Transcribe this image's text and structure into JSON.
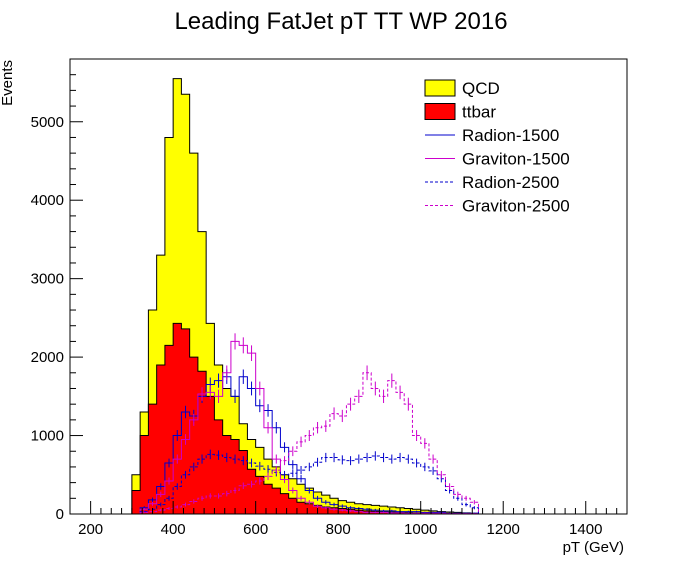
{
  "chart_data": {
    "type": "histogram",
    "title": "Leading FatJet pT TT WP 2016",
    "xlabel": "pT (GeV)",
    "ylabel": "Events",
    "xlim": [
      150,
      1500
    ],
    "ylim": [
      0,
      5800
    ],
    "bin_width": 20,
    "bin_start": 300,
    "grid": false,
    "legend_position": "top-right",
    "x_ticks": [
      200,
      400,
      600,
      800,
      1000,
      1200,
      1400
    ],
    "y_ticks": [
      0,
      1000,
      2000,
      3000,
      4000,
      5000
    ],
    "x_tick_labels": [
      "200",
      "400",
      "600",
      "800",
      "1000",
      "1200",
      "1400"
    ],
    "y_tick_labels": [
      "0",
      "1000",
      "2000",
      "3000",
      "4000",
      "5000"
    ],
    "series": [
      {
        "name": "QCD",
        "style": "stacked-fill",
        "color": "#ffff00",
        "values": [
          500,
          1300,
          2600,
          3300,
          4800,
          5550,
          5350,
          4600,
          3600,
          2430,
          1900,
          1600,
          1500,
          1150,
          950,
          850,
          700,
          600,
          500,
          450,
          380,
          330,
          280,
          240,
          200,
          170,
          150,
          130,
          120,
          110,
          100,
          90,
          80,
          70,
          60,
          50,
          40,
          30,
          25,
          20,
          15,
          10
        ]
      },
      {
        "name": "ttbar",
        "style": "filled",
        "color": "#ff0000",
        "values": [
          300,
          1000,
          1400,
          1900,
          2150,
          2430,
          2360,
          2000,
          1820,
          1500,
          1200,
          1000,
          950,
          810,
          570,
          480,
          380,
          330,
          260,
          200,
          150,
          130,
          110,
          90,
          80,
          70,
          60,
          50,
          40,
          35,
          30,
          25,
          20,
          18,
          15,
          12,
          10,
          8,
          6,
          5,
          4,
          3
        ]
      },
      {
        "name": "Radion-1500",
        "style": "line",
        "color": "#0000cc",
        "values": [
          0,
          80,
          180,
          350,
          650,
          1000,
          1300,
          1250,
          1500,
          1650,
          1700,
          1750,
          1500,
          1750,
          1600,
          1380,
          1320,
          1100,
          850,
          630,
          450,
          300,
          200,
          150,
          120,
          100,
          80,
          70,
          60,
          50,
          40,
          40,
          30,
          30,
          30,
          20,
          20,
          20,
          10,
          10,
          10,
          10
        ]
      },
      {
        "name": "Graviton-1500",
        "style": "line",
        "color": "#cc00cc",
        "values": [
          0,
          60,
          130,
          250,
          420,
          700,
          950,
          1200,
          1530,
          1550,
          1500,
          1800,
          2200,
          2150,
          2050,
          1600,
          1100,
          700,
          440,
          300,
          200,
          150,
          100,
          80,
          60,
          50,
          40,
          30,
          20,
          20,
          20,
          15,
          15,
          10,
          10,
          10,
          10,
          10,
          5,
          5,
          5,
          5
        ]
      },
      {
        "name": "Radion-2500",
        "style": "dashed",
        "color": "#0000cc",
        "values": [
          0,
          30,
          60,
          120,
          200,
          350,
          500,
          600,
          700,
          760,
          750,
          720,
          700,
          680,
          650,
          610,
          570,
          530,
          500,
          520,
          560,
          600,
          660,
          720,
          720,
          690,
          680,
          700,
          720,
          740,
          720,
          700,
          720,
          700,
          650,
          600,
          550,
          450,
          300,
          200,
          120,
          80
        ]
      },
      {
        "name": "Graviton-2500",
        "style": "dashed",
        "color": "#cc00cc",
        "values": [
          0,
          20,
          30,
          50,
          70,
          90,
          120,
          160,
          200,
          230,
          230,
          260,
          300,
          360,
          380,
          420,
          480,
          560,
          680,
          800,
          920,
          1000,
          1100,
          1120,
          1280,
          1250,
          1400,
          1500,
          1800,
          1600,
          1500,
          1700,
          1550,
          1400,
          1000,
          900,
          700,
          500,
          350,
          250,
          200,
          150
        ]
      }
    ]
  }
}
